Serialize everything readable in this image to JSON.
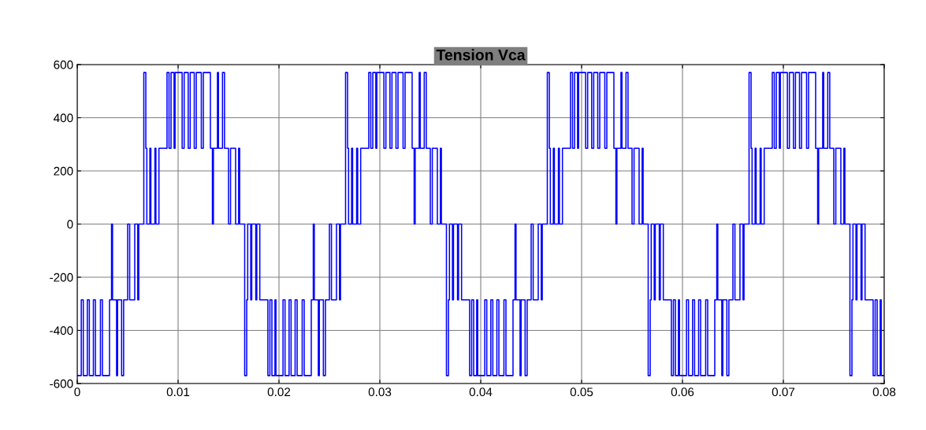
{
  "chart_data": {
    "type": "step",
    "title": "Tension Vca",
    "color": "#0000ff",
    "x": [
      0,
      0.0004,
      0.0006,
      0.001,
      0.0012,
      0.0016,
      0.0018,
      0.0023,
      0.0025,
      0.0032,
      0.0034,
      0.0035,
      0.0039,
      0.004,
      0.0044,
      0.0046,
      0.005,
      0.0052,
      0.0057,
      0.006,
      0.0061,
      0.0066,
      0.0068,
      0.0069,
      0.0072,
      0.0073,
      0.0077,
      0.0078,
      0.0081,
      0.0089,
      0.0091,
      0.0093,
      0.0096,
      0.0097,
      0.01,
      0.0104,
      0.0106,
      0.011,
      0.0112,
      0.0116,
      0.0118,
      0.0123,
      0.0125,
      0.0132,
      0.0134,
      0.0135,
      0.0139,
      0.014,
      0.0144,
      0.0146,
      0.015,
      0.0152,
      0.0157,
      0.016,
      0.0161,
      0.0166,
      0.0168,
      0.0169,
      0.0172,
      0.0173,
      0.0177,
      0.0178,
      0.0181,
      0.0189,
      0.0191,
      0.0193,
      0.0196,
      0.0197,
      0.02,
      0.0204,
      0.0206,
      0.021,
      0.0212,
      0.0216,
      0.0218,
      0.0223,
      0.0225,
      0.0232,
      0.0234,
      0.0235,
      0.0239,
      0.024,
      0.0244,
      0.0246,
      0.025,
      0.0252,
      0.0257,
      0.026,
      0.0261,
      0.0266,
      0.0268,
      0.0269,
      0.0272,
      0.0273,
      0.0277,
      0.0278,
      0.0281,
      0.0289,
      0.0291,
      0.0293,
      0.0296,
      0.0297,
      0.03,
      0.0304,
      0.0306,
      0.031,
      0.0312,
      0.0316,
      0.0318,
      0.0323,
      0.0325,
      0.0332,
      0.0334,
      0.0335,
      0.0339,
      0.034,
      0.0344,
      0.0346,
      0.035,
      0.0352,
      0.0357,
      0.036,
      0.0361,
      0.0366,
      0.0368,
      0.0369,
      0.0372,
      0.0373,
      0.0377,
      0.0378,
      0.0381,
      0.0389,
      0.0391,
      0.0393,
      0.0396,
      0.0397,
      0.04,
      0.0404,
      0.0406,
      0.041,
      0.0412,
      0.0416,
      0.0418,
      0.0423,
      0.0425,
      0.0432,
      0.0434,
      0.0435,
      0.0439,
      0.044,
      0.0444,
      0.0446,
      0.045,
      0.0452,
      0.0457,
      0.046,
      0.0461,
      0.0466,
      0.0468,
      0.0469,
      0.0472,
      0.0473,
      0.0477,
      0.0478,
      0.0481,
      0.0489,
      0.0491,
      0.0493,
      0.0496,
      0.0497,
      0.05,
      0.0504,
      0.0506,
      0.051,
      0.0512,
      0.0516,
      0.0518,
      0.0523,
      0.0525,
      0.0532,
      0.0534,
      0.0535,
      0.0539,
      0.054,
      0.0544,
      0.0546,
      0.055,
      0.0552,
      0.0557,
      0.056,
      0.0561,
      0.0566,
      0.0568,
      0.0569,
      0.0572,
      0.0573,
      0.0577,
      0.0578,
      0.0581,
      0.0589,
      0.0591,
      0.0593,
      0.0596,
      0.0597,
      0.06,
      0.0604,
      0.0606,
      0.061,
      0.0612,
      0.0616,
      0.0618,
      0.0623,
      0.0625,
      0.0632,
      0.0634,
      0.0635,
      0.0639,
      0.064,
      0.0644,
      0.0646,
      0.065,
      0.0652,
      0.0657,
      0.066,
      0.0661,
      0.0666,
      0.0668,
      0.0669,
      0.0672,
      0.0673,
      0.0677,
      0.0678,
      0.0681,
      0.0689,
      0.0691,
      0.0693,
      0.0696,
      0.0697,
      0.07,
      0.0704,
      0.0706,
      0.071,
      0.0712,
      0.0716,
      0.0718,
      0.0723,
      0.0725,
      0.0732,
      0.0734,
      0.0735,
      0.0739,
      0.074,
      0.0744,
      0.0746,
      0.075,
      0.0752,
      0.0757,
      0.076,
      0.0761,
      0.0766,
      0.0768,
      0.0769,
      0.0772,
      0.0773,
      0.0777,
      0.0778,
      0.0781,
      0.0789,
      0.0791,
      0.0793,
      0.0796,
      0.0797,
      0.08
    ],
    "values": [
      -570,
      -285,
      -570,
      -285,
      -570,
      -285,
      -570,
      -285,
      -570,
      -285,
      0,
      -285,
      -570,
      -285,
      -570,
      -285,
      0,
      -285,
      0,
      -285,
      0,
      570,
      285,
      0,
      285,
      0,
      285,
      0,
      285,
      570,
      285,
      570,
      285,
      570,
      570,
      285,
      570,
      285,
      570,
      285,
      570,
      285,
      570,
      285,
      0,
      285,
      570,
      285,
      570,
      285,
      0,
      285,
      0,
      285,
      0,
      -570,
      -285,
      0,
      -285,
      0,
      -285,
      0,
      -285,
      -570,
      -285,
      -570,
      -285,
      -570,
      -570,
      -285,
      -570,
      -285,
      -570,
      -285,
      -570,
      -285,
      -570,
      -285,
      0,
      -285,
      -570,
      -285,
      -570,
      -285,
      0,
      -285,
      0,
      -285,
      0,
      570,
      285,
      0,
      285,
      0,
      285,
      0,
      285,
      570,
      285,
      570,
      285,
      570,
      570,
      285,
      570,
      285,
      570,
      285,
      570,
      285,
      570,
      285,
      0,
      285,
      570,
      285,
      570,
      285,
      0,
      285,
      0,
      285,
      0,
      -570,
      -285,
      0,
      -285,
      0,
      -285,
      0,
      -285,
      -570,
      -285,
      -570,
      -285,
      -570,
      -570,
      -285,
      -570,
      -285,
      -570,
      -285,
      -570,
      -285,
      -570,
      -285,
      0,
      -285,
      -570,
      -285,
      -570,
      -285,
      0,
      -285,
      0,
      -285,
      0,
      570,
      285,
      0,
      285,
      0,
      285,
      0,
      285,
      570,
      285,
      570,
      285,
      570,
      570,
      285,
      570,
      285,
      570,
      285,
      570,
      285,
      570,
      285,
      0,
      285,
      570,
      285,
      570,
      285,
      0,
      285,
      0,
      285,
      0,
      -570,
      -285,
      0,
      -285,
      0,
      -285,
      0,
      -285,
      -570,
      -285,
      -570,
      -285,
      -570,
      -570,
      -285,
      -570,
      -285,
      -570,
      -285,
      -570,
      -285,
      -570,
      -285,
      0,
      -285,
      -570,
      -285,
      -570,
      -285,
      0,
      -285,
      0,
      -285,
      0,
      570,
      285,
      0,
      285,
      0,
      285,
      0,
      285,
      570,
      285,
      570,
      285,
      570,
      570,
      285,
      570,
      285,
      570,
      285,
      570,
      285,
      570,
      285,
      0,
      285,
      570,
      285,
      570,
      285,
      0,
      285,
      0,
      285,
      0,
      -570,
      -285,
      0,
      -285,
      0,
      -285,
      0,
      -285,
      -570,
      -285,
      -570,
      -285,
      -570,
      -570
    ],
    "xlim": [
      0,
      0.08
    ],
    "ylim": [
      -600,
      600
    ],
    "xticks": [
      0,
      0.01,
      0.02,
      0.03,
      0.04,
      0.05,
      0.06,
      0.07,
      0.08
    ],
    "yticks": [
      -600,
      -400,
      -200,
      0,
      200,
      400,
      600
    ],
    "grid": true
  }
}
